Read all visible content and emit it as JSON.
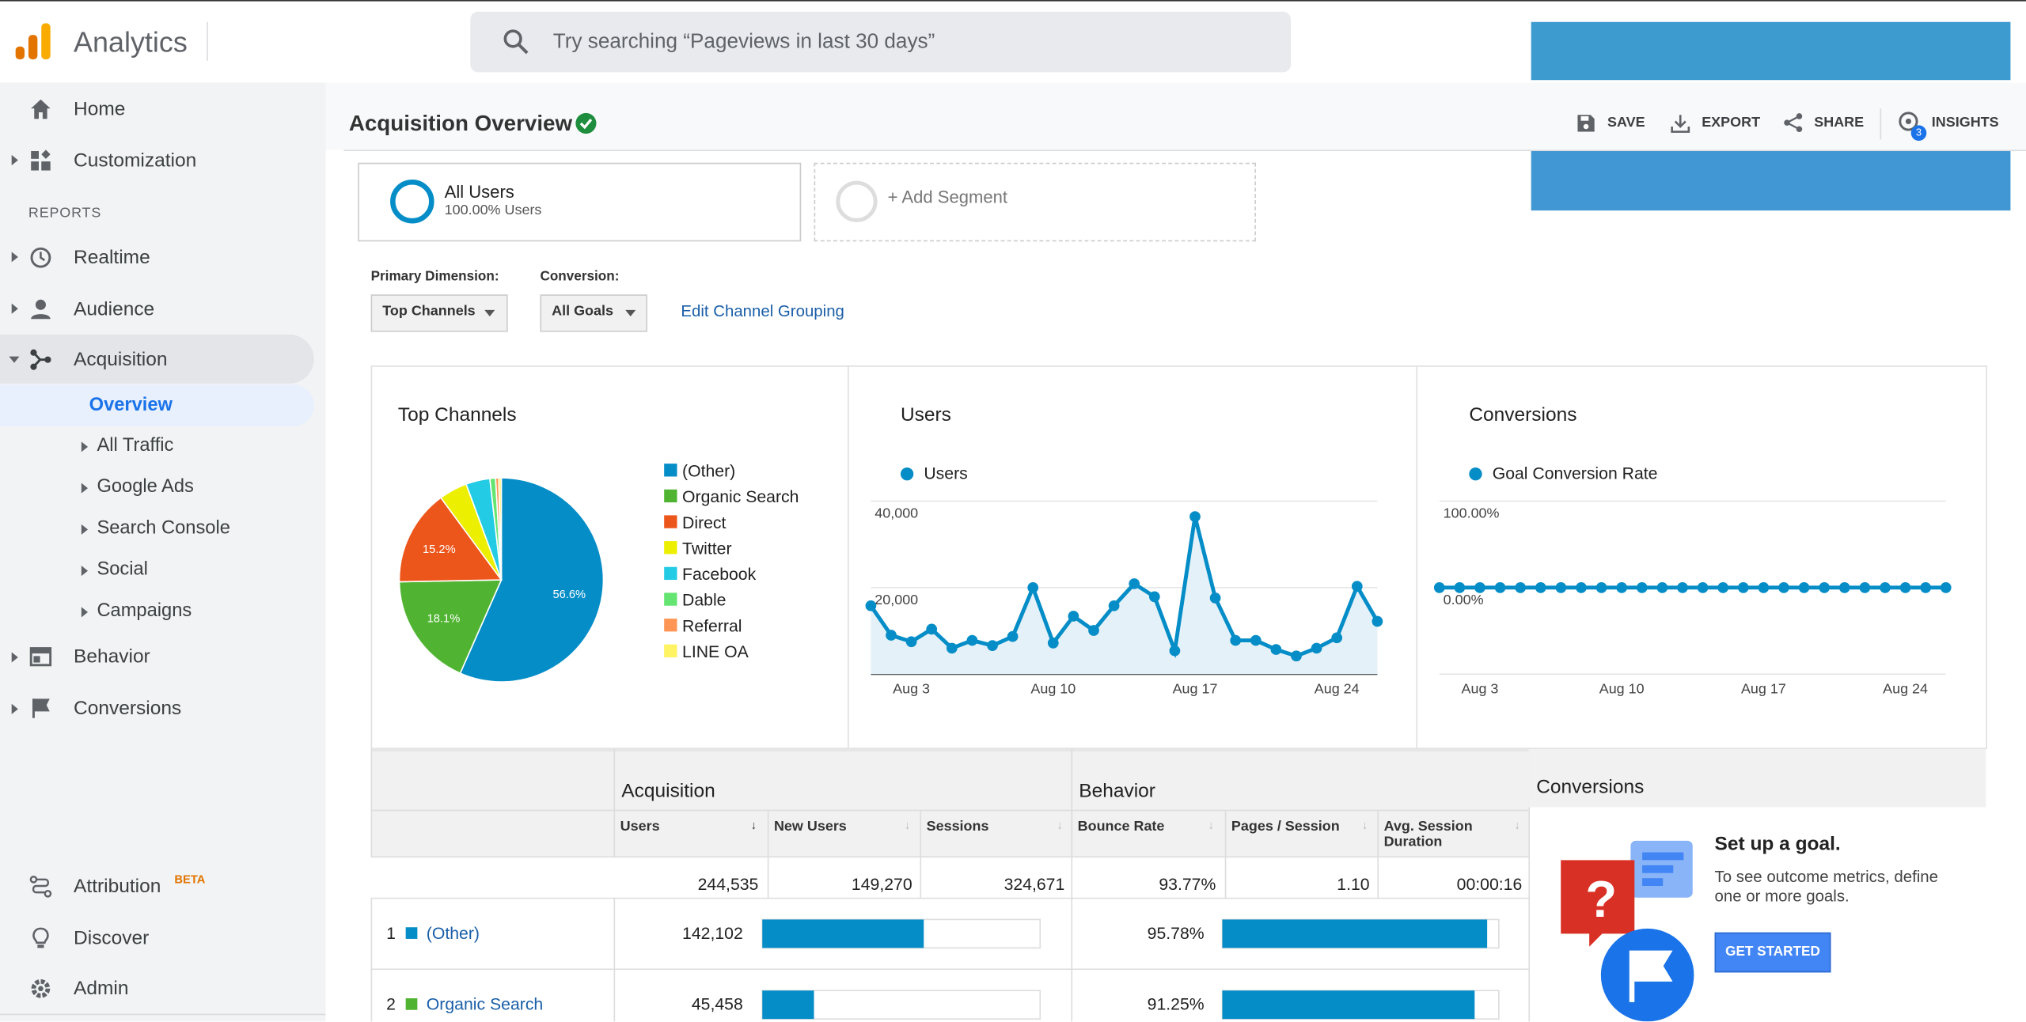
{
  "header": {
    "app_name": "Analytics",
    "search_placeholder": "Try searching “Pageviews in last 30 days”"
  },
  "sidebar": {
    "top": [
      "Home",
      "Customization"
    ],
    "reports_heading": "REPORTS",
    "reports": [
      "Realtime",
      "Audience",
      "Acquisition"
    ],
    "acquisition_children": [
      "Overview",
      "All Traffic",
      "Google Ads",
      "Search Console",
      "Social",
      "Campaigns"
    ],
    "reports_after": [
      "Behavior",
      "Conversions"
    ],
    "bottom": [
      {
        "label": "Attribution",
        "badge": "BETA"
      },
      {
        "label": "Discover"
      },
      {
        "label": "Admin"
      }
    ]
  },
  "page": {
    "title": "Acquisition Overview",
    "actions": [
      "SAVE",
      "EXPORT",
      "SHARE",
      "INSIGHTS"
    ],
    "insights_badge": "3"
  },
  "segments": {
    "active": {
      "name": "All Users",
      "detail": "100.00% Users"
    },
    "add": "+ Add Segment"
  },
  "controls": {
    "primary_dimension_label": "Primary Dimension:",
    "primary_dimension": "Top Channels",
    "conversion_label": "Conversion:",
    "conversion": "All Goals",
    "edit_link": "Edit Channel Grouping"
  },
  "chart_data": [
    {
      "type": "pie",
      "title": "Top Channels",
      "categories": [
        "(Other)",
        "Organic Search",
        "Direct",
        "Twitter",
        "Facebook",
        "Dable",
        "Referral",
        "LINE OA"
      ],
      "values": [
        56.6,
        18.1,
        15.2,
        4.5,
        3.8,
        0.9,
        0.5,
        0.4
      ],
      "value_labels": [
        "56.6%",
        "18.1%",
        "15.2%",
        null,
        null,
        null,
        null,
        null
      ],
      "colors": [
        "#058dc7",
        "#50b432",
        "#ed561b",
        "#edef00",
        "#24cbe5",
        "#64e572",
        "#ff9655",
        "#fff263"
      ]
    },
    {
      "type": "line",
      "title": "Users",
      "categories": [
        null,
        null,
        "Aug 3",
        null,
        null,
        null,
        null,
        null,
        null,
        "Aug 10",
        null,
        null,
        null,
        null,
        null,
        null,
        "Aug 17",
        null,
        null,
        null,
        null,
        null,
        null,
        "Aug 24",
        null,
        null
      ],
      "series": [
        {
          "name": "Users",
          "color": "#058dc7",
          "values": [
            15800,
            9000,
            7500,
            10400,
            6000,
            7800,
            6600,
            8700,
            20000,
            7200,
            13400,
            10100,
            15800,
            20900,
            17900,
            5400,
            36400,
            17600,
            7800,
            7800,
            5700,
            4200,
            6000,
            8400,
            20300,
            12200
          ]
        }
      ],
      "ylim": [
        0,
        40000
      ],
      "yticks": [
        {
          "value": 20000,
          "label": "20,000"
        },
        {
          "value": 40000,
          "label": "40,000"
        }
      ],
      "grid": true,
      "area": true
    },
    {
      "type": "line",
      "title": "Conversions",
      "categories": [
        null,
        null,
        "Aug 3",
        null,
        null,
        null,
        null,
        null,
        null,
        "Aug 10",
        null,
        null,
        null,
        null,
        null,
        null,
        "Aug 17",
        null,
        null,
        null,
        null,
        null,
        null,
        "Aug 24",
        null,
        null
      ],
      "series": [
        {
          "name": "Goal Conversion Rate",
          "color": "#058dc7",
          "values": [
            0,
            0,
            0,
            0,
            0,
            0,
            0,
            0,
            0,
            0,
            0,
            0,
            0,
            0,
            0,
            0,
            0,
            0,
            0,
            0,
            0,
            0,
            0,
            0,
            0,
            0
          ]
        }
      ],
      "ylim": [
        -100,
        100
      ],
      "yticks": [
        {
          "value": 0,
          "label": "0.00%"
        },
        {
          "value": 100,
          "label": "100.00%"
        }
      ],
      "grid": true,
      "area": false
    }
  ],
  "table": {
    "groups": [
      "Acquisition",
      "Behavior"
    ],
    "columns": [
      "Users",
      "New Users",
      "Sessions",
      "Bounce Rate",
      "Pages / Session",
      "Avg. Session Duration"
    ],
    "totals": [
      "244,535",
      "149,270",
      "324,671",
      "93.77%",
      "1.10",
      "00:00:16"
    ],
    "rows": [
      {
        "rank": "1",
        "channel": "(Other)",
        "users": "142,102",
        "bounce_rate": "95.78%"
      },
      {
        "rank": "2",
        "channel": "Organic Search",
        "users": "45,458",
        "bounce_rate": "91.25%"
      }
    ]
  },
  "goal_panel": {
    "title": "Conversions",
    "heading": "Set up a goal.",
    "text": "To see outcome metrics, define one or more goals.",
    "button": "GET STARTED"
  }
}
